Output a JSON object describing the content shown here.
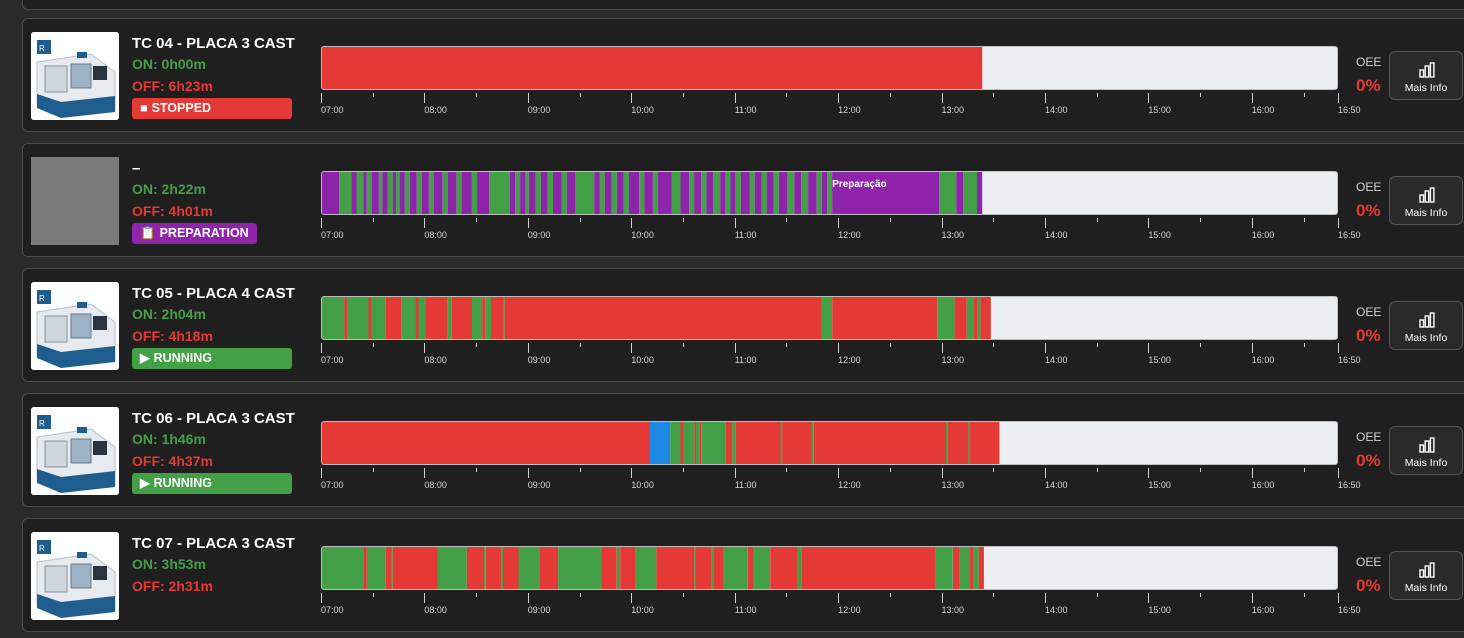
{
  "colors": {
    "running": "#43a047",
    "stopped": "#e53935",
    "preparation": "#8e24aa",
    "setup": "#1e88e5",
    "idle": "#eceff1",
    "blank_thumb": "#7a7a7a"
  },
  "axis": {
    "start": "07:00",
    "end": "16:50",
    "ticks": [
      "07:00",
      "08:00",
      "09:00",
      "10:00",
      "11:00",
      "12:00",
      "13:00",
      "14:00",
      "15:00",
      "16:00",
      "16:50"
    ]
  },
  "oee_label": "OEE",
  "info_button_label": "Mais Info",
  "machines": [
    {
      "name": "TC 04 - PLACA 3 CAST",
      "on": "ON: 0h00m",
      "off": "OFF: 6h23m",
      "status": "STOPPED",
      "status_color": "#e53935",
      "status_icon": "stop-icon",
      "oee": "0%",
      "has_image": true,
      "timeline_end": "13:23",
      "segments": [
        [
          "07:00",
          "13:23",
          "stopped"
        ]
      ]
    },
    {
      "name": "–",
      "on": "ON: 2h22m",
      "off": "OFF: 4h01m",
      "status": "PREPARATION",
      "status_color": "#8e24aa",
      "status_icon": "clipboard-icon",
      "oee": "0%",
      "has_image": false,
      "timeline_end": "13:23",
      "bar_annotation": "Preparação",
      "segments": [
        [
          "07:00",
          "07:10",
          "preparation"
        ],
        [
          "07:10",
          "07:17",
          "running"
        ],
        [
          "07:17",
          "07:20",
          "preparation"
        ],
        [
          "07:20",
          "07:24",
          "running"
        ],
        [
          "07:24",
          "07:26",
          "preparation"
        ],
        [
          "07:26",
          "07:29",
          "running"
        ],
        [
          "07:29",
          "07:33",
          "preparation"
        ],
        [
          "07:33",
          "07:35",
          "running"
        ],
        [
          "07:35",
          "07:38",
          "preparation"
        ],
        [
          "07:38",
          "07:41",
          "running"
        ],
        [
          "07:41",
          "07:43",
          "preparation"
        ],
        [
          "07:43",
          "07:45",
          "running"
        ],
        [
          "07:45",
          "07:48",
          "preparation"
        ],
        [
          "07:48",
          "07:51",
          "running"
        ],
        [
          "07:51",
          "07:55",
          "preparation"
        ],
        [
          "07:55",
          "07:58",
          "running"
        ],
        [
          "07:58",
          "08:02",
          "preparation"
        ],
        [
          "08:02",
          "08:05",
          "running"
        ],
        [
          "08:05",
          "08:10",
          "preparation"
        ],
        [
          "08:10",
          "08:13",
          "running"
        ],
        [
          "08:13",
          "08:18",
          "preparation"
        ],
        [
          "08:18",
          "08:21",
          "running"
        ],
        [
          "08:21",
          "08:27",
          "preparation"
        ],
        [
          "08:27",
          "08:30",
          "running"
        ],
        [
          "08:30",
          "08:37",
          "preparation"
        ],
        [
          "08:37",
          "08:49",
          "running"
        ],
        [
          "08:49",
          "08:52",
          "preparation"
        ],
        [
          "08:52",
          "08:55",
          "running"
        ],
        [
          "08:55",
          "08:58",
          "preparation"
        ],
        [
          "08:58",
          "09:00",
          "running"
        ],
        [
          "09:00",
          "09:04",
          "preparation"
        ],
        [
          "09:04",
          "09:07",
          "running"
        ],
        [
          "09:07",
          "09:11",
          "preparation"
        ],
        [
          "09:11",
          "09:14",
          "running"
        ],
        [
          "09:14",
          "09:19",
          "preparation"
        ],
        [
          "09:19",
          "09:22",
          "running"
        ],
        [
          "09:22",
          "09:27",
          "preparation"
        ],
        [
          "09:27",
          "09:38",
          "running"
        ],
        [
          "09:38",
          "09:41",
          "preparation"
        ],
        [
          "09:41",
          "09:44",
          "running"
        ],
        [
          "09:44",
          "09:48",
          "preparation"
        ],
        [
          "09:48",
          "09:51",
          "running"
        ],
        [
          "09:51",
          "09:55",
          "preparation"
        ],
        [
          "09:55",
          "09:58",
          "running"
        ],
        [
          "09:58",
          "10:04",
          "preparation"
        ],
        [
          "10:04",
          "10:07",
          "running"
        ],
        [
          "10:07",
          "10:12",
          "preparation"
        ],
        [
          "10:12",
          "10:15",
          "running"
        ],
        [
          "10:15",
          "10:23",
          "preparation"
        ],
        [
          "10:23",
          "10:28",
          "running"
        ],
        [
          "10:28",
          "10:33",
          "preparation"
        ],
        [
          "10:33",
          "10:36",
          "running"
        ],
        [
          "10:36",
          "10:40",
          "preparation"
        ],
        [
          "10:40",
          "10:43",
          "running"
        ],
        [
          "10:43",
          "10:47",
          "preparation"
        ],
        [
          "10:47",
          "10:51",
          "running"
        ],
        [
          "10:51",
          "10:54",
          "preparation"
        ],
        [
          "10:54",
          "10:57",
          "running"
        ],
        [
          "10:57",
          "11:00",
          "preparation"
        ],
        [
          "11:00",
          "11:03",
          "running"
        ],
        [
          "11:03",
          "11:08",
          "preparation"
        ],
        [
          "11:08",
          "11:11",
          "running"
        ],
        [
          "11:11",
          "11:15",
          "preparation"
        ],
        [
          "11:15",
          "11:18",
          "running"
        ],
        [
          "11:18",
          "11:22",
          "preparation"
        ],
        [
          "11:22",
          "11:25",
          "running"
        ],
        [
          "11:25",
          "11:30",
          "preparation"
        ],
        [
          "11:30",
          "11:34",
          "running"
        ],
        [
          "11:34",
          "11:38",
          "preparation"
        ],
        [
          "11:38",
          "11:42",
          "running"
        ],
        [
          "11:42",
          "11:47",
          "preparation"
        ],
        [
          "11:47",
          "11:50",
          "running"
        ],
        [
          "11:50",
          "11:53",
          "preparation"
        ],
        [
          "11:53",
          "11:56",
          "running"
        ],
        [
          "11:56",
          "12:58",
          "preparation"
        ],
        [
          "12:58",
          "13:08",
          "running"
        ],
        [
          "13:08",
          "13:12",
          "preparation"
        ],
        [
          "13:12",
          "13:20",
          "running"
        ],
        [
          "13:20",
          "13:23",
          "preparation"
        ]
      ]
    },
    {
      "name": "TC 05 - PLACA 4 CAST",
      "on": "ON: 2h04m",
      "off": "OFF: 4h18m",
      "status": "RUNNING",
      "status_color": "#43a047",
      "status_icon": "play-icon",
      "oee": "0%",
      "has_image": true,
      "timeline_end": "13:28",
      "segments": [
        [
          "07:00",
          "07:13",
          "running"
        ],
        [
          "07:13",
          "07:15",
          "stopped"
        ],
        [
          "07:15",
          "07:27",
          "running"
        ],
        [
          "07:27",
          "07:29",
          "stopped"
        ],
        [
          "07:29",
          "07:37",
          "running"
        ],
        [
          "07:37",
          "07:46",
          "stopped"
        ],
        [
          "07:46",
          "07:54",
          "running"
        ],
        [
          "07:54",
          "07:56",
          "stopped"
        ],
        [
          "07:56",
          "08:00",
          "running"
        ],
        [
          "08:00",
          "08:13",
          "stopped"
        ],
        [
          "08:13",
          "08:15",
          "running"
        ],
        [
          "08:15",
          "08:27",
          "stopped"
        ],
        [
          "08:27",
          "08:33",
          "running"
        ],
        [
          "08:33",
          "08:35",
          "stopped"
        ],
        [
          "08:35",
          "08:38",
          "running"
        ],
        [
          "08:38",
          "08:45",
          "stopped"
        ],
        [
          "08:45",
          "08:46",
          "running"
        ],
        [
          "08:46",
          "11:50",
          "stopped"
        ],
        [
          "11:50",
          "11:56",
          "running"
        ],
        [
          "11:56",
          "12:57",
          "stopped"
        ],
        [
          "12:57",
          "13:07",
          "running"
        ],
        [
          "13:07",
          "13:14",
          "stopped"
        ],
        [
          "13:14",
          "13:18",
          "running"
        ],
        [
          "13:18",
          "13:20",
          "stopped"
        ],
        [
          "13:20",
          "13:22",
          "running"
        ],
        [
          "13:22",
          "13:28",
          "stopped"
        ]
      ]
    },
    {
      "name": "TC 06 - PLACA 3 CAST",
      "on": "ON: 1h46m",
      "off": "OFF: 4h37m",
      "status": "RUNNING",
      "status_color": "#43a047",
      "status_icon": "play-icon",
      "oee": "0%",
      "has_image": true,
      "timeline_end": "13:33",
      "segments": [
        [
          "07:00",
          "10:10",
          "stopped"
        ],
        [
          "10:10",
          "10:22",
          "setup"
        ],
        [
          "10:22",
          "10:28",
          "running"
        ],
        [
          "10:28",
          "10:30",
          "stopped"
        ],
        [
          "10:30",
          "10:36",
          "running"
        ],
        [
          "10:36",
          "10:37",
          "stopped"
        ],
        [
          "10:37",
          "10:39",
          "running"
        ],
        [
          "10:39",
          "10:40",
          "stopped"
        ],
        [
          "10:40",
          "10:54",
          "running"
        ],
        [
          "10:54",
          "10:58",
          "stopped"
        ],
        [
          "10:58",
          "11:00",
          "running"
        ],
        [
          "11:00",
          "11:26",
          "stopped"
        ],
        [
          "11:26",
          "11:27",
          "running"
        ],
        [
          "11:27",
          "11:44",
          "stopped"
        ],
        [
          "11:44",
          "11:45",
          "running"
        ],
        [
          "11:45",
          "13:02",
          "stopped"
        ],
        [
          "13:02",
          "13:03",
          "running"
        ],
        [
          "13:03",
          "13:15",
          "stopped"
        ],
        [
          "13:15",
          "13:16",
          "running"
        ],
        [
          "13:16",
          "13:33",
          "stopped"
        ]
      ]
    },
    {
      "name": "TC 07 - PLACA 3 CAST",
      "on": "ON: 3h53m",
      "off": "OFF: 2h31m",
      "status": "",
      "status_color": "",
      "status_icon": "",
      "oee": "0%",
      "has_image": true,
      "timeline_end": "13:24",
      "segments": [
        [
          "07:00",
          "07:24",
          "running"
        ],
        [
          "07:24",
          "07:26",
          "stopped"
        ],
        [
          "07:26",
          "07:37",
          "running"
        ],
        [
          "07:37",
          "07:40",
          "stopped"
        ],
        [
          "07:40",
          "07:41",
          "running"
        ],
        [
          "07:41",
          "08:07",
          "stopped"
        ],
        [
          "08:07",
          "08:24",
          "running"
        ],
        [
          "08:24",
          "08:34",
          "stopped"
        ],
        [
          "08:34",
          "08:35",
          "running"
        ],
        [
          "08:35",
          "08:44",
          "stopped"
        ],
        [
          "08:44",
          "08:45",
          "running"
        ],
        [
          "08:45",
          "08:54",
          "stopped"
        ],
        [
          "08:54",
          "09:06",
          "running"
        ],
        [
          "09:06",
          "09:17",
          "stopped"
        ],
        [
          "09:17",
          "09:42",
          "running"
        ],
        [
          "09:42",
          "09:51",
          "stopped"
        ],
        [
          "09:51",
          "09:53",
          "running"
        ],
        [
          "09:53",
          "10:02",
          "stopped"
        ],
        [
          "10:02",
          "10:14",
          "running"
        ],
        [
          "10:14",
          "10:36",
          "stopped"
        ],
        [
          "10:36",
          "10:37",
          "running"
        ],
        [
          "10:37",
          "10:46",
          "stopped"
        ],
        [
          "10:46",
          "10:47",
          "running"
        ],
        [
          "10:47",
          "10:53",
          "stopped"
        ],
        [
          "10:53",
          "11:07",
          "running"
        ],
        [
          "11:07",
          "11:10",
          "stopped"
        ],
        [
          "11:10",
          "11:20",
          "running"
        ],
        [
          "11:20",
          "11:36",
          "stopped"
        ],
        [
          "11:36",
          "11:38",
          "running"
        ],
        [
          "11:38",
          "12:56",
          "stopped"
        ],
        [
          "12:56",
          "13:06",
          "running"
        ],
        [
          "13:06",
          "13:10",
          "stopped"
        ],
        [
          "13:10",
          "13:16",
          "running"
        ],
        [
          "13:16",
          "13:18",
          "stopped"
        ],
        [
          "13:18",
          "13:21",
          "running"
        ],
        [
          "13:21",
          "13:24",
          "stopped"
        ]
      ]
    }
  ]
}
